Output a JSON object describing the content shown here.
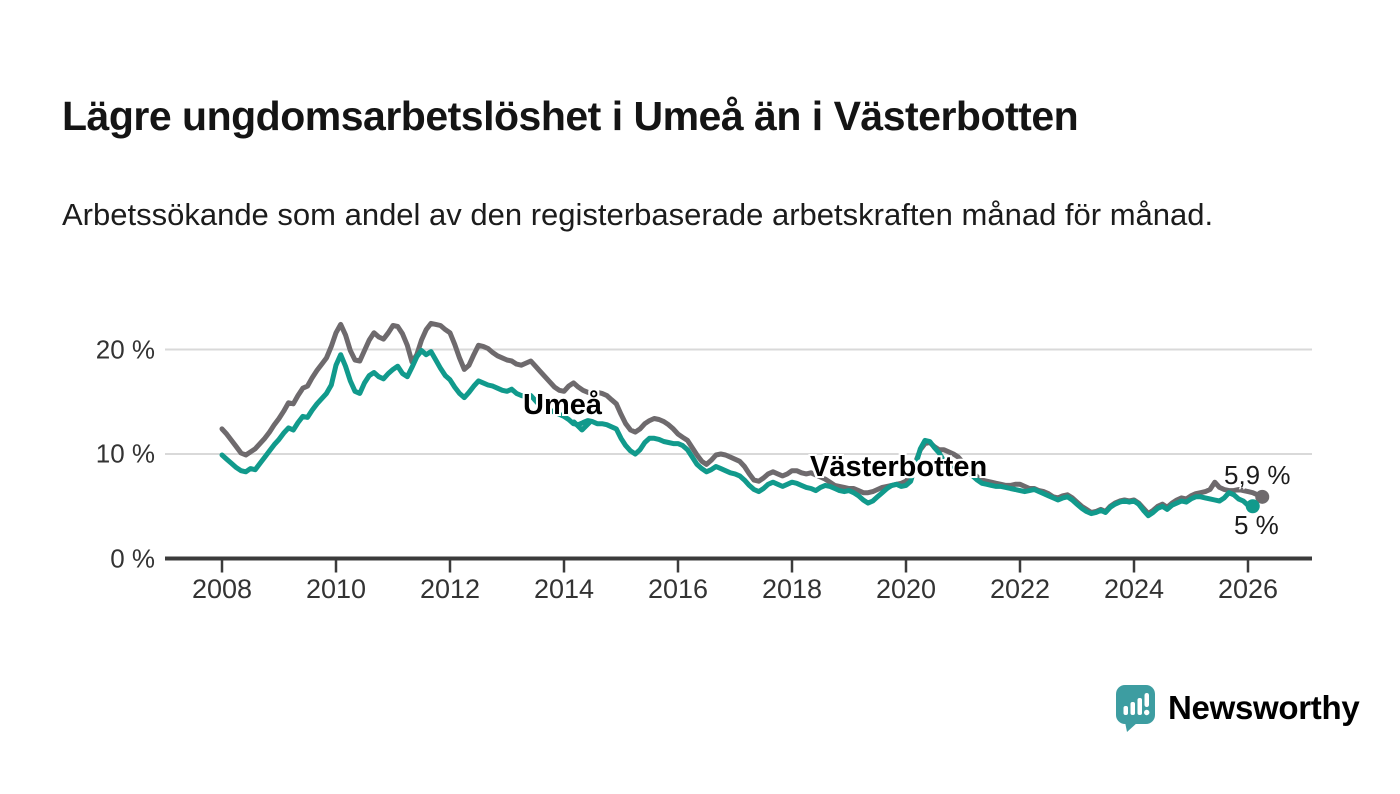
{
  "title": "Lägre ungdomsarbetslöshet i Umeå än i Västerbotten",
  "subtitle": "Arbetssökande som andel av den registerbaserade arbetskraften månad för månad.",
  "branding": {
    "logo_text": "Newsworthy",
    "logo_color": "#3d9da1"
  },
  "colors": {
    "umea_line": "#119a8c",
    "vasterbotten_line": "#6e6a6d",
    "gridline": "#d9d9d9",
    "axis": "#3b3b3b",
    "tick_text": "#333333",
    "annotation_text": "#1c1c1c"
  },
  "chart_data": {
    "type": "line",
    "title": "Lägre ungdomsarbetslöshet i Umeå än i Västerbotten",
    "subtitle": "Arbetssökande som andel av den registerbaserade arbetskraften månad för månad.",
    "grid": "horizontal-only",
    "x_axis": {
      "unit": "year-month",
      "range_start": "2008-01",
      "range_end": "2026-04",
      "ticks": [
        {
          "year": 2008,
          "label": "2008"
        },
        {
          "year": 2010,
          "label": "2010"
        },
        {
          "year": 2012,
          "label": "2012"
        },
        {
          "year": 2014,
          "label": "2014"
        },
        {
          "year": 2016,
          "label": "2016"
        },
        {
          "year": 2018,
          "label": "2018"
        },
        {
          "year": 2020,
          "label": "2020"
        },
        {
          "year": 2022,
          "label": "2022"
        },
        {
          "year": 2024,
          "label": "2024"
        },
        {
          "year": 2026,
          "label": "2026"
        }
      ]
    },
    "y_axis": {
      "unit": "percent",
      "range": [
        0,
        24
      ],
      "ticks": [
        {
          "value": 0,
          "label": "0 %"
        },
        {
          "value": 10,
          "label": "10 %"
        },
        {
          "value": 20,
          "label": "20 %"
        }
      ]
    },
    "series": [
      {
        "name": "Umeå",
        "color": "#119a8c",
        "start_year": 2008,
        "start_month": 1,
        "end_label": "5 %",
        "end_value": 5.0,
        "values": [
          9.9,
          9.5,
          9.1,
          8.7,
          8.4,
          8.3,
          8.6,
          8.5,
          9.1,
          9.7,
          10.3,
          10.9,
          11.4,
          12.0,
          12.5,
          12.3,
          13.0,
          13.6,
          13.5,
          14.2,
          14.8,
          15.3,
          15.8,
          16.6,
          18.5,
          19.5,
          18.4,
          17.0,
          16.0,
          15.8,
          16.8,
          17.5,
          17.8,
          17.4,
          17.2,
          17.7,
          18.1,
          18.4,
          17.7,
          17.4,
          18.3,
          19.3,
          19.9,
          19.5,
          19.8,
          19.0,
          18.2,
          17.5,
          17.1,
          16.4,
          15.8,
          15.4,
          15.9,
          16.5,
          17.0,
          16.8,
          16.6,
          16.5,
          16.3,
          16.1,
          16.0,
          16.2,
          15.8,
          15.6,
          15.5,
          15.6,
          15.1,
          14.6,
          14.4,
          14.2,
          14.0,
          13.8,
          13.6,
          13.3,
          12.9,
          12.8,
          13.0,
          13.2,
          13.1,
          12.9,
          12.9,
          12.8,
          12.6,
          12.4,
          11.5,
          10.8,
          10.3,
          10.0,
          10.4,
          11.1,
          11.5,
          11.5,
          11.4,
          11.2,
          11.1,
          11.0,
          11.0,
          10.8,
          10.4,
          9.7,
          9.0,
          8.6,
          8.3,
          8.5,
          8.8,
          8.6,
          8.4,
          8.2,
          8.1,
          7.9,
          7.5,
          7.0,
          6.6,
          6.4,
          6.7,
          7.1,
          7.3,
          7.1,
          6.9,
          7.1,
          7.3,
          7.2,
          7.0,
          6.8,
          6.7,
          6.5,
          6.8,
          7.0,
          6.9,
          6.7,
          6.5,
          6.4,
          6.5,
          6.3,
          6.0,
          5.6,
          5.3,
          5.5,
          5.9,
          6.3,
          6.7,
          7.0,
          7.1,
          6.9,
          7.0,
          7.4,
          8.9,
          10.5,
          11.3,
          11.2,
          10.6,
          10.1,
          9.3,
          9.0,
          8.8,
          8.8,
          8.6,
          8.3,
          7.9,
          7.5,
          7.2,
          7.1,
          7.0,
          6.9,
          6.9,
          6.8,
          6.7,
          6.6,
          6.5,
          6.4,
          6.5,
          6.6,
          6.4,
          6.2,
          6.0,
          5.8,
          5.6,
          5.8,
          5.9,
          5.6,
          5.2,
          4.8,
          4.5,
          4.3,
          4.4,
          4.6,
          4.4,
          4.9,
          5.2,
          5.4,
          5.5,
          5.4,
          5.5,
          5.2,
          4.6,
          4.1,
          4.4,
          4.8,
          5.0,
          4.7,
          5.1,
          5.3,
          5.5,
          5.4,
          5.7,
          5.9,
          5.9,
          5.8,
          5.7,
          5.6,
          5.5,
          5.8,
          6.3,
          6.1,
          5.7,
          5.5,
          5.1,
          5.0
        ]
      },
      {
        "name": "Västerbotten",
        "color": "#6e6a6d",
        "start_year": 2008,
        "start_month": 1,
        "end_label": "5,9 %",
        "end_value": 5.9,
        "values": [
          12.4,
          11.9,
          11.3,
          10.7,
          10.1,
          9.9,
          10.2,
          10.5,
          11.0,
          11.5,
          12.1,
          12.8,
          13.4,
          14.1,
          14.9,
          14.8,
          15.6,
          16.3,
          16.5,
          17.3,
          18.0,
          18.6,
          19.2,
          20.3,
          21.6,
          22.4,
          21.4,
          19.9,
          19.0,
          18.9,
          19.9,
          20.9,
          21.6,
          21.2,
          21.0,
          21.6,
          22.3,
          22.2,
          21.5,
          20.4,
          18.8,
          19.5,
          20.9,
          21.9,
          22.5,
          22.4,
          22.3,
          21.9,
          21.6,
          20.5,
          19.2,
          18.1,
          18.5,
          19.5,
          20.4,
          20.3,
          20.1,
          19.7,
          19.4,
          19.2,
          19.0,
          18.9,
          18.6,
          18.5,
          18.7,
          18.9,
          18.4,
          17.9,
          17.4,
          16.9,
          16.4,
          16.1,
          16.0,
          16.5,
          16.8,
          16.4,
          16.1,
          15.9,
          15.8,
          15.9,
          15.8,
          15.6,
          15.2,
          14.8,
          13.8,
          12.9,
          12.3,
          12.1,
          12.4,
          12.9,
          13.2,
          13.4,
          13.3,
          13.1,
          12.8,
          12.4,
          11.9,
          11.6,
          11.3,
          10.6,
          9.9,
          9.3,
          9.0,
          9.4,
          9.9,
          10.0,
          9.9,
          9.7,
          9.5,
          9.3,
          8.8,
          8.1,
          7.5,
          7.4,
          7.7,
          8.1,
          8.3,
          8.1,
          7.9,
          8.1,
          8.4,
          8.4,
          8.2,
          8.1,
          8.2,
          8.0,
          7.8,
          7.6,
          7.3,
          7.0,
          6.9,
          6.8,
          6.7,
          6.7,
          6.5,
          6.3,
          6.3,
          6.4,
          6.6,
          6.8,
          6.9,
          7.0,
          7.1,
          7.2,
          7.4,
          7.9,
          9.2,
          10.4,
          11.0,
          11.1,
          10.7,
          10.4,
          10.4,
          10.2,
          10.0,
          9.7,
          9.2,
          8.8,
          8.3,
          7.8,
          7.5,
          7.4,
          7.3,
          7.2,
          7.1,
          7.0,
          7.0,
          7.1,
          7.1,
          6.9,
          6.7,
          6.7,
          6.5,
          6.4,
          6.2,
          5.9,
          5.8,
          6.0,
          6.1,
          5.8,
          5.4,
          5.0,
          4.7,
          4.4,
          4.5,
          4.7,
          4.5,
          5.0,
          5.3,
          5.5,
          5.6,
          5.5,
          5.6,
          5.3,
          4.8,
          4.3,
          4.6,
          5.0,
          5.2,
          4.9,
          5.3,
          5.6,
          5.8,
          5.7,
          6.0,
          6.2,
          6.3,
          6.4,
          6.6,
          7.3,
          6.8,
          6.6,
          6.5,
          6.5,
          6.6,
          6.5,
          6.4,
          6.3,
          6.1,
          5.9
        ]
      }
    ],
    "legend_position": "inline-labels"
  }
}
